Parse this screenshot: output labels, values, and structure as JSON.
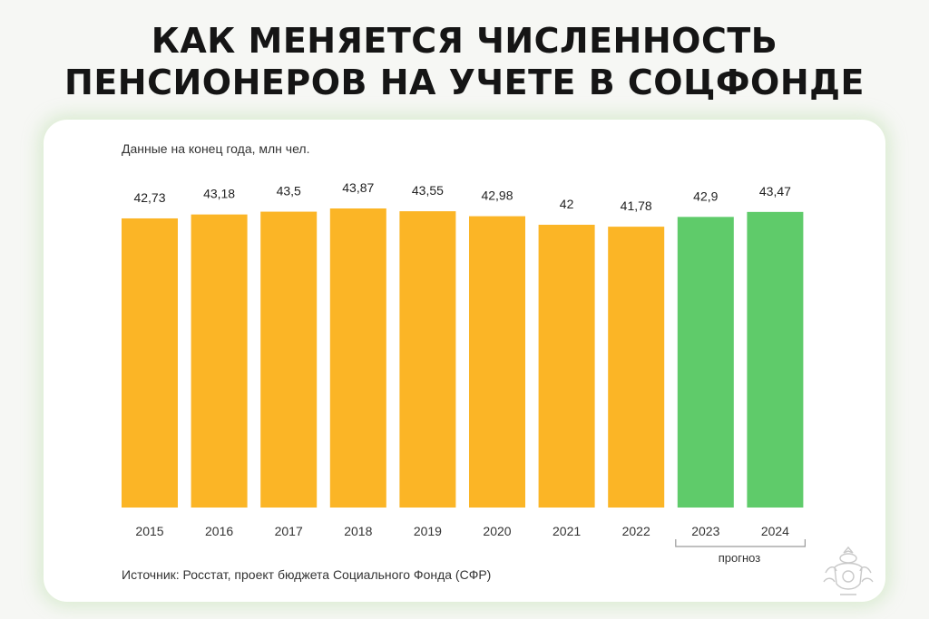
{
  "header": {
    "title_line1": "КАК МЕНЯЕТСЯ ЧИСЛЕННОСТЬ",
    "title_line2": "ПЕНСИОНЕРОВ НА УЧЕТЕ В СОЦФОНДЕ"
  },
  "chart_data": {
    "type": "bar",
    "subtitle": "Данные на конец года, млн чел.",
    "categories": [
      "2015",
      "2016",
      "2017",
      "2018",
      "2019",
      "2020",
      "2021",
      "2022",
      "2023",
      "2024"
    ],
    "values": [
      42.73,
      43.18,
      43.5,
      43.87,
      43.55,
      42.98,
      42,
      41.78,
      42.9,
      43.47
    ],
    "value_labels": [
      "42,73",
      "43,18",
      "43,5",
      "43,87",
      "43,55",
      "42,98",
      "42",
      "41,78",
      "42,9",
      "43,47"
    ],
    "forecast_from_index": 8,
    "forecast_label": "прогноз",
    "colors": {
      "actual": "#FBB526",
      "forecast": "#5FCB6A"
    },
    "source": "Источник: Росстат, проект бюджета Социального Фонда (СФР)"
  }
}
